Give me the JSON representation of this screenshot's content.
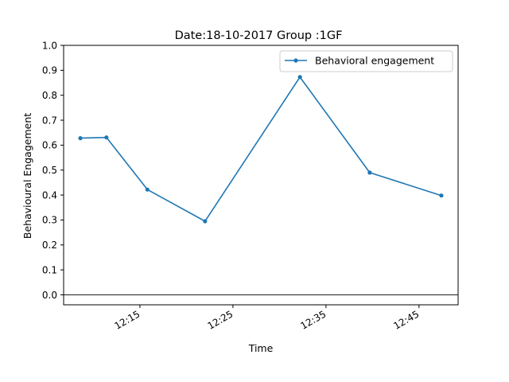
{
  "chart_data": {
    "type": "line",
    "title": "Date:18-10-2017 Group :1GF",
    "xlabel": "Time",
    "ylabel": "Behavioural Engagement",
    "x_ticks": [
      "12:15",
      "12:25",
      "12:35",
      "12:45"
    ],
    "y_ticks": [
      "0.0",
      "0.1",
      "0.2",
      "0.3",
      "0.4",
      "0.5",
      "0.6",
      "0.7",
      "0.8",
      "0.9",
      "1.0"
    ],
    "ylim": [
      -0.04,
      1.0
    ],
    "xlim": [
      "12:06:48",
      "12:49:12"
    ],
    "zero_line": true,
    "grid": false,
    "legend_position": "top-right",
    "series": [
      {
        "name": "Behavioral engagement",
        "color": "#1f77b4",
        "marker": "point",
        "x": [
          "12:08:36",
          "12:11:24",
          "12:15:48",
          "12:22:00",
          "12:32:12",
          "12:39:42",
          "12:47:24"
        ],
        "values": [
          0.628,
          0.631,
          0.422,
          0.295,
          0.873,
          0.49,
          0.398
        ]
      }
    ]
  }
}
